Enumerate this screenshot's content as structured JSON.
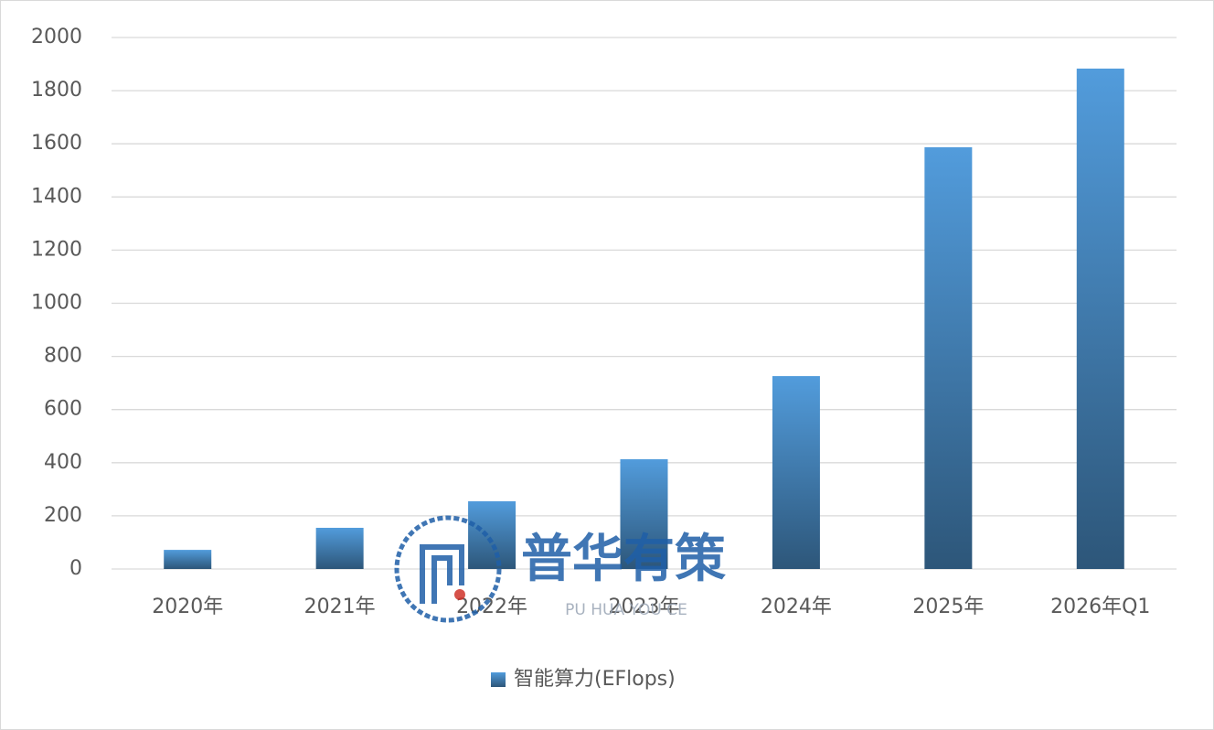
{
  "chart_data": {
    "type": "bar",
    "categories": [
      "2020年",
      "2021年",
      "2022年",
      "2023年",
      "2024年",
      "2025年",
      "2026年Q1"
    ],
    "series": [
      {
        "name": "智能算力(EFlops)",
        "color": "#529cdc",
        "values": [
          72,
          155,
          255,
          413,
          726,
          1587,
          1883
        ]
      }
    ],
    "ylim": [
      0,
      2000
    ],
    "yticks": [
      0,
      200,
      400,
      600,
      800,
      1000,
      1200,
      1400,
      1600,
      1800,
      2000
    ],
    "grid": true,
    "legend": "bottom"
  },
  "watermark": {
    "title": "普华有策",
    "subtitle": "PU HUA YOU CE"
  }
}
